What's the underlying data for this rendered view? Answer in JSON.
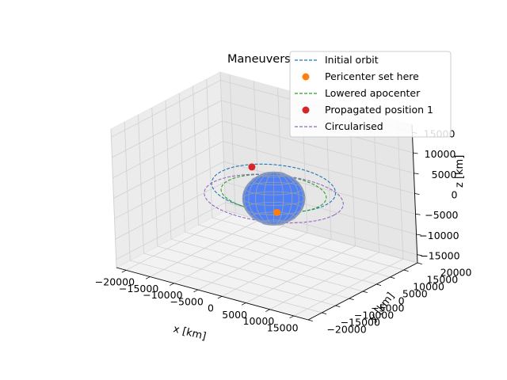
{
  "chart_data": {
    "type": "line",
    "projection": "3d",
    "title": "Maneuvers",
    "xlabel": "x [km]",
    "ylabel": "y [km]",
    "zlabel": "z [km]",
    "xlim": [
      -22000,
      18000
    ],
    "ylim": [
      -20000,
      20000
    ],
    "zlim": [
      -17000,
      17000
    ],
    "x_ticks": [
      "−20000",
      "−15000",
      "−10000",
      "−5000",
      "0",
      "5000",
      "10000",
      "15000"
    ],
    "y_ticks": [
      "−20000",
      "−15000",
      "−10000",
      "−5000",
      "0",
      "5000",
      "10000",
      "15000",
      "20000"
    ],
    "z_ticks": [
      "−15000",
      "−10000",
      "−5000",
      "0",
      "5000",
      "10000",
      "15000"
    ],
    "grid": true,
    "legend_position": "top-right",
    "series": [
      {
        "name": "Initial orbit",
        "kind": "orbit",
        "style": "dashed",
        "color": "#1f77b4",
        "semi_major_axis": 12500,
        "eccentricity": 0.44,
        "argument_of_pericenter_deg": -60
      },
      {
        "name": "Pericenter set here",
        "kind": "point",
        "color": "#ff7f0e",
        "x": 4100,
        "y": -6000,
        "z": 0
      },
      {
        "name": "Lowered apocenter",
        "kind": "orbit",
        "style": "dashed",
        "color": "#2ca02c",
        "semi_major_axis": 9900,
        "eccentricity": 0.27,
        "argument_of_pericenter_deg": -60
      },
      {
        "name": "Propagated position 1",
        "kind": "point",
        "color": "#d62728",
        "x": -11300,
        "y": 11800,
        "z": 0
      },
      {
        "name": "Circularised",
        "kind": "orbit",
        "style": "dashed",
        "color": "#9467bd",
        "semi_major_axis": 12600,
        "eccentricity": 0,
        "argument_of_pericenter_deg": 0
      }
    ],
    "body": {
      "name": "Earth",
      "radius": 6378,
      "color": "#4f7ff5",
      "grid_color": "#8e9bb5"
    }
  }
}
